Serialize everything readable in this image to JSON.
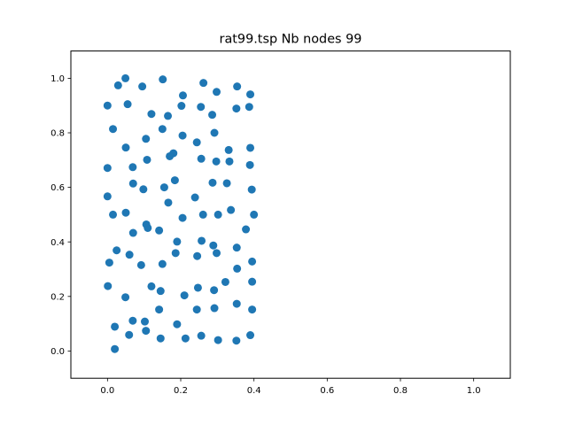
{
  "chart_data": {
    "type": "scatter",
    "title": "rat99.tsp Nb nodes 99",
    "xlabel": "",
    "ylabel": "",
    "xlim": [
      -0.1,
      1.1
    ],
    "ylim": [
      -0.1,
      1.1
    ],
    "xticks": [
      0.0,
      0.2,
      0.4,
      0.6,
      0.8,
      1.0
    ],
    "yticks": [
      0.0,
      0.2,
      0.4,
      0.6,
      0.8,
      1.0
    ],
    "xtick_labels": [
      "0.0",
      "0.2",
      "0.4",
      "0.6",
      "0.8",
      "1.0"
    ],
    "ytick_labels": [
      "0.0",
      "0.2",
      "0.4",
      "0.6",
      "0.8",
      "1.0"
    ],
    "grid": false,
    "marker_color": "#1f77b4",
    "series": [
      {
        "points": [
          [
            0.049,
            1.0
          ],
          [
            0.029,
            0.974
          ],
          [
            0.095,
            0.97
          ],
          [
            0.151,
            0.996
          ],
          [
            0.262,
            0.983
          ],
          [
            0.354,
            0.97
          ],
          [
            0.206,
            0.937
          ],
          [
            0.298,
            0.95
          ],
          [
            0.39,
            0.941
          ],
          [
            0.0,
            0.9
          ],
          [
            0.055,
            0.905
          ],
          [
            0.12,
            0.869
          ],
          [
            0.165,
            0.862
          ],
          [
            0.202,
            0.899
          ],
          [
            0.255,
            0.895
          ],
          [
            0.286,
            0.866
          ],
          [
            0.352,
            0.889
          ],
          [
            0.387,
            0.895
          ],
          [
            0.015,
            0.814
          ],
          [
            0.15,
            0.814
          ],
          [
            0.105,
            0.778
          ],
          [
            0.205,
            0.79
          ],
          [
            0.244,
            0.765
          ],
          [
            0.292,
            0.8
          ],
          [
            0.05,
            0.746
          ],
          [
            0.18,
            0.725
          ],
          [
            0.17,
            0.714
          ],
          [
            0.108,
            0.701
          ],
          [
            0.256,
            0.705
          ],
          [
            0.297,
            0.695
          ],
          [
            0.333,
            0.695
          ],
          [
            0.331,
            0.737
          ],
          [
            0.39,
            0.745
          ],
          [
            0.0,
            0.671
          ],
          [
            0.069,
            0.674
          ],
          [
            0.389,
            0.682
          ],
          [
            0.07,
            0.614
          ],
          [
            0.098,
            0.593
          ],
          [
            0.155,
            0.6
          ],
          [
            0.184,
            0.626
          ],
          [
            0.287,
            0.617
          ],
          [
            0.326,
            0.615
          ],
          [
            0.394,
            0.592
          ],
          [
            0.0,
            0.567
          ],
          [
            0.166,
            0.544
          ],
          [
            0.239,
            0.563
          ],
          [
            0.015,
            0.5
          ],
          [
            0.05,
            0.507
          ],
          [
            0.106,
            0.464
          ],
          [
            0.11,
            0.451
          ],
          [
            0.205,
            0.488
          ],
          [
            0.261,
            0.5
          ],
          [
            0.302,
            0.5
          ],
          [
            0.337,
            0.517
          ],
          [
            0.4,
            0.5
          ],
          [
            0.07,
            0.433
          ],
          [
            0.141,
            0.442
          ],
          [
            0.378,
            0.446
          ],
          [
            0.19,
            0.401
          ],
          [
            0.257,
            0.404
          ],
          [
            0.289,
            0.387
          ],
          [
            0.353,
            0.379
          ],
          [
            0.025,
            0.369
          ],
          [
            0.06,
            0.353
          ],
          [
            0.186,
            0.359
          ],
          [
            0.245,
            0.348
          ],
          [
            0.298,
            0.359
          ],
          [
            0.005,
            0.324
          ],
          [
            0.092,
            0.315
          ],
          [
            0.15,
            0.319
          ],
          [
            0.354,
            0.302
          ],
          [
            0.395,
            0.328
          ],
          [
            0.001,
            0.238
          ],
          [
            0.049,
            0.197
          ],
          [
            0.12,
            0.237
          ],
          [
            0.145,
            0.22
          ],
          [
            0.21,
            0.204
          ],
          [
            0.247,
            0.232
          ],
          [
            0.291,
            0.223
          ],
          [
            0.322,
            0.253
          ],
          [
            0.395,
            0.254
          ],
          [
            0.141,
            0.152
          ],
          [
            0.244,
            0.152
          ],
          [
            0.292,
            0.157
          ],
          [
            0.353,
            0.173
          ],
          [
            0.395,
            0.152
          ],
          [
            0.069,
            0.111
          ],
          [
            0.102,
            0.108
          ],
          [
            0.19,
            0.098
          ],
          [
            0.02,
            0.089
          ],
          [
            0.105,
            0.074
          ],
          [
            0.059,
            0.059
          ],
          [
            0.145,
            0.046
          ],
          [
            0.213,
            0.046
          ],
          [
            0.256,
            0.056
          ],
          [
            0.302,
            0.04
          ],
          [
            0.352,
            0.038
          ],
          [
            0.39,
            0.058
          ],
          [
            0.02,
            0.007
          ]
        ]
      }
    ]
  }
}
